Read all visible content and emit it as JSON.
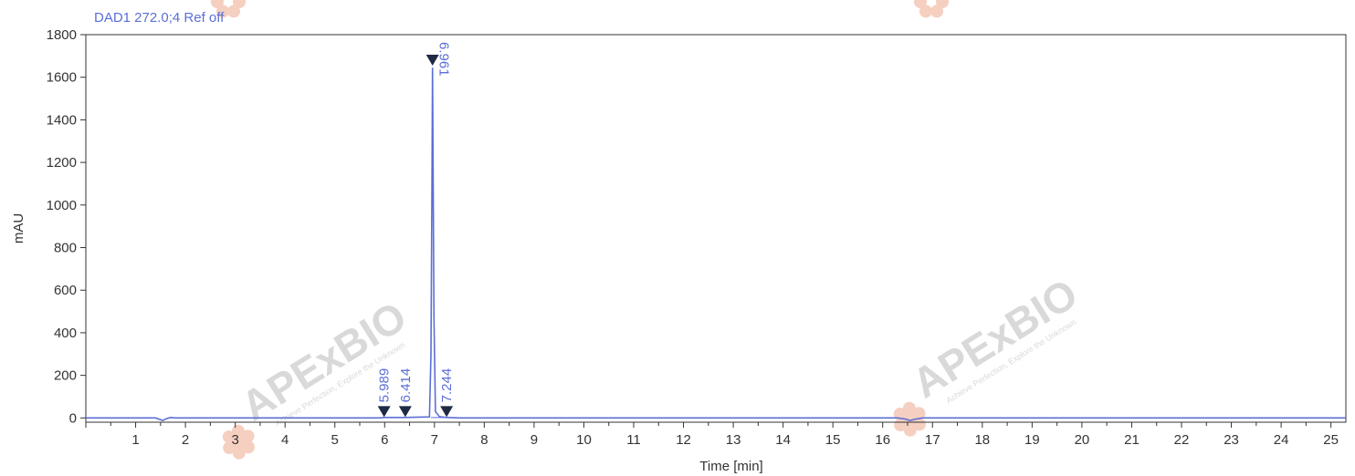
{
  "colors": {
    "trace": "#5b6fd6",
    "label": "#5b6fd6",
    "axis": "#333333",
    "marker": "#1f2a44",
    "watermark_text": "#d9d9d9",
    "watermark_x": "#f3c7a8",
    "watermark_logo": "#f5cfc0"
  },
  "watermark": {
    "brand": "APExBIO",
    "slogan": "Achieve Perfection, Explore the Unknown"
  },
  "chart_data": {
    "type": "line",
    "title": "DAD1 272.0;4 Ref off",
    "xlabel": "Time [min]",
    "ylabel": "mAU",
    "xlim": [
      0,
      25.3
    ],
    "ylim": [
      -20,
      1800
    ],
    "x_ticks": [
      1,
      2,
      3,
      4,
      5,
      6,
      7,
      8,
      9,
      10,
      11,
      12,
      13,
      14,
      15,
      16,
      17,
      18,
      19,
      20,
      21,
      22,
      23,
      24,
      25
    ],
    "y_ticks": [
      0,
      200,
      400,
      600,
      800,
      1000,
      1200,
      1400,
      1600,
      1800
    ],
    "grid": false,
    "series": [
      {
        "x": [
          0.0,
          1.4,
          1.5,
          1.55,
          1.6,
          1.7,
          1.8,
          5.9,
          6.0,
          6.4,
          6.9,
          6.93,
          6.95,
          6.961,
          6.97,
          6.99,
          7.02,
          7.1,
          7.25,
          7.5,
          16.3,
          16.45,
          16.55,
          16.65,
          16.8,
          25.3
        ],
        "y": [
          0,
          0,
          -8,
          -12,
          -5,
          2,
          0,
          0,
          2,
          2,
          5,
          300,
          1100,
          1645,
          1300,
          470,
          30,
          6,
          2,
          0,
          0,
          -5,
          -12,
          -6,
          0,
          0
        ]
      }
    ],
    "peaks": [
      {
        "time": 5.989,
        "label": "5.989",
        "marker_y": 30
      },
      {
        "time": 6.414,
        "label": "6.414",
        "marker_y": 30
      },
      {
        "time": 6.961,
        "label": "6.961",
        "marker_y": 1680
      },
      {
        "time": 7.244,
        "label": "7.244",
        "marker_y": 30
      }
    ]
  }
}
